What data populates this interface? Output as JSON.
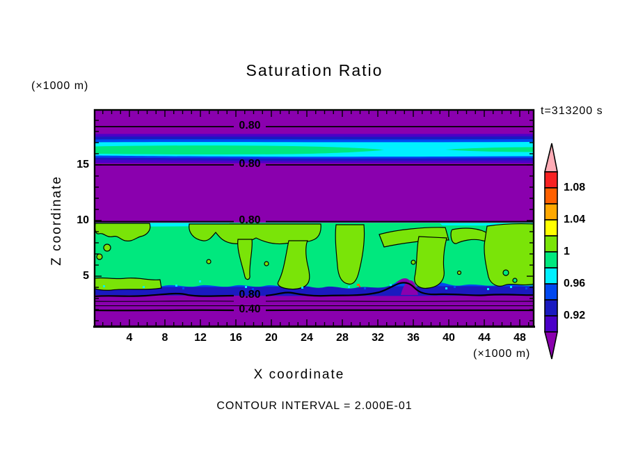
{
  "title": "Saturation Ratio",
  "time_label": "t=313200 s",
  "footnote": "CONTOUR INTERVAL = 2.000E-01",
  "axes": {
    "x": {
      "title": "X coordinate",
      "units": "(×1000 m)",
      "ticks": [
        "4",
        "8",
        "12",
        "16",
        "20",
        "24",
        "28",
        "32",
        "36",
        "40",
        "44",
        "48"
      ]
    },
    "y": {
      "title": "Z coordinate",
      "units": "(×1000 m)",
      "ticks": [
        "15",
        "10",
        "5"
      ]
    }
  },
  "colorbar": {
    "labels": [
      "1.08",
      "1.04",
      "1",
      "0.96",
      "0.92"
    ]
  },
  "contour_labels": [
    "0.80",
    "0.80",
    "0.80",
    "0.80",
    "0.40"
  ],
  "palette": {
    "purple": "#8A00AE",
    "violet": "#4B00C8",
    "navy": "#1A1AC0",
    "blue": "#0048F0",
    "cyan": "#00F0FF",
    "green": "#00E87E",
    "ygreen": "#7AE408",
    "yellow": "#FFFF00",
    "orange": "#FFA800",
    "orangered": "#FF6000",
    "red": "#F82222",
    "pink": "#FFACB6",
    "black": "#000000"
  },
  "chart_data": {
    "type": "heatmap",
    "title": "Saturation Ratio",
    "xlabel": "X coordinate (×1000 m)",
    "ylabel": "Z coordinate (×1000 m)",
    "x_range": [
      0,
      49.6
    ],
    "y_range": [
      0.4,
      20
    ],
    "x_tick_values": [
      4,
      8,
      12,
      16,
      20,
      24,
      28,
      32,
      36,
      40,
      44,
      48
    ],
    "y_tick_values": [
      5,
      10,
      15
    ],
    "time_annotation": "t=313200 s",
    "contour_interval": "2.000E-01",
    "colorbar": {
      "fill_levels": [
        0.9,
        0.92,
        0.94,
        0.96,
        0.98,
        1.0,
        1.02,
        1.04,
        1.06,
        1.08,
        1.1
      ],
      "labeled_levels": [
        1.08,
        1.04,
        1,
        0.96,
        0.92
      ],
      "colors_top_to_bottom": [
        "pink(>1.10)",
        "red",
        "orangered",
        "orange",
        "yellow",
        "yellow-green",
        "spring-green",
        "cyan",
        "blue",
        "navy",
        "violet",
        "purple(<0.90)"
      ]
    },
    "labeled_contours": [
      {
        "value": 0.8,
        "z_approx": 18.4
      },
      {
        "value": 0.8,
        "z_approx": 15.0
      },
      {
        "value": 0.8,
        "z_approx": 9.9
      },
      {
        "value": 0.8,
        "z_approx": 3.2
      },
      {
        "value": 0.4,
        "z_approx": 1.9
      }
    ],
    "regions": [
      {
        "name": "background",
        "saturation": "< 0.90 (purple)"
      },
      {
        "name": "upper stratiform cloud layer",
        "z_span": [
          15.1,
          16.4
        ],
        "saturation": "0.92 to 1.00",
        "structure": "navy/blue/cyan shell with spring-green core near saturation"
      },
      {
        "name": "boundary-layer convective cloud",
        "z_span": [
          3.6,
          9.8
        ],
        "saturation": "0.98 to 1.02",
        "structure": "spring-green field (0.98-1.00) with yellow-green plumes (1.00-1.02) outlined by the 1.00 contour; thin blue/navy sub-saturated fringe at cloud base with cyan specks and one tiny orange-red supersaturated speck near x=29.7, z=5.3"
      }
    ]
  }
}
